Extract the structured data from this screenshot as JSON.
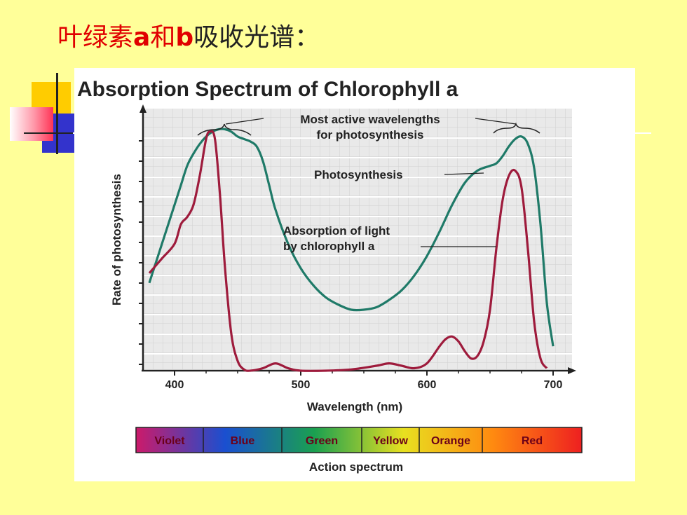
{
  "slide": {
    "title_prefix": "叶绿素",
    "title_a": "a",
    "title_mid": "和",
    "title_b": "b",
    "title_suffix": "吸收光谱",
    "title_colon": "："
  },
  "colors": {
    "background": "#ffff99",
    "title_red": "#e00000",
    "photosynthesis_line": "#1f7a68",
    "absorption_line": "#9e1b3c"
  },
  "chart_data": {
    "type": "line",
    "title": "Absorption Spectrum of Chlorophyll a",
    "xlabel": "Wavelength (nm)",
    "ylabel": "Rate of photosynthesis",
    "xlim": [
      375,
      715
    ],
    "ylim": [
      0,
      100
    ],
    "xticks": [
      400,
      500,
      600,
      700
    ],
    "grid": true,
    "series": [
      {
        "name": "Photosynthesis",
        "color": "#1f7a68",
        "x": [
          380,
          385,
          390,
          395,
          400,
          405,
          410,
          415,
          420,
          425,
          430,
          435,
          440,
          445,
          450,
          455,
          460,
          465,
          470,
          475,
          480,
          490,
          500,
          510,
          520,
          530,
          540,
          550,
          560,
          570,
          580,
          590,
          600,
          610,
          620,
          630,
          640,
          650,
          655,
          660,
          665,
          670,
          675,
          680,
          685,
          690,
          695,
          700
        ],
        "y": [
          36,
          44,
          52,
          60,
          68,
          76,
          84,
          89,
          93,
          96,
          98,
          99,
          99,
          98,
          96,
          95,
          94,
          92,
          86,
          76,
          66,
          52,
          42,
          35,
          30,
          27,
          25,
          25,
          26,
          29,
          33,
          39,
          47,
          57,
          68,
          77,
          82,
          84,
          85,
          88,
          92,
          95,
          96,
          93,
          83,
          60,
          28,
          10
        ]
      },
      {
        "name": "Absorption of light by chlorophyll a",
        "color": "#9e1b3c",
        "x": [
          380,
          390,
          400,
          405,
          410,
          415,
          420,
          425,
          428,
          432,
          436,
          440,
          445,
          450,
          455,
          460,
          470,
          480,
          490,
          500,
          520,
          540,
          560,
          570,
          580,
          590,
          600,
          610,
          615,
          620,
          625,
          630,
          635,
          640,
          645,
          650,
          655,
          660,
          665,
          670,
          675,
          680,
          685,
          690,
          695
        ],
        "y": [
          40,
          46,
          52,
          60,
          63,
          68,
          80,
          95,
          98,
          95,
          72,
          42,
          15,
          4,
          0.5,
          0,
          1,
          3,
          1,
          0,
          0,
          0.5,
          2,
          3,
          2,
          1,
          3,
          10,
          13,
          14,
          12,
          8,
          5,
          6,
          12,
          25,
          50,
          70,
          80,
          82,
          75,
          50,
          20,
          5,
          1
        ]
      }
    ],
    "annotations": [
      "Most active wavelengths",
      "for photosynthesis",
      "Photosynthesis",
      "Absorption of light",
      "by chlorophyll a"
    ],
    "action_spectrum": {
      "label": "Action spectrum",
      "bands": [
        {
          "name": "Violet",
          "color": "#cc1a6a"
        },
        {
          "name": "Blue",
          "color": "#1a4fd0"
        },
        {
          "name": "Green",
          "color": "#1aa050"
        },
        {
          "name": "Yellow",
          "color": "#e8e020"
        },
        {
          "name": "Orange",
          "color": "#ff8a10"
        },
        {
          "name": "Red",
          "color": "#ee2020"
        }
      ]
    }
  }
}
